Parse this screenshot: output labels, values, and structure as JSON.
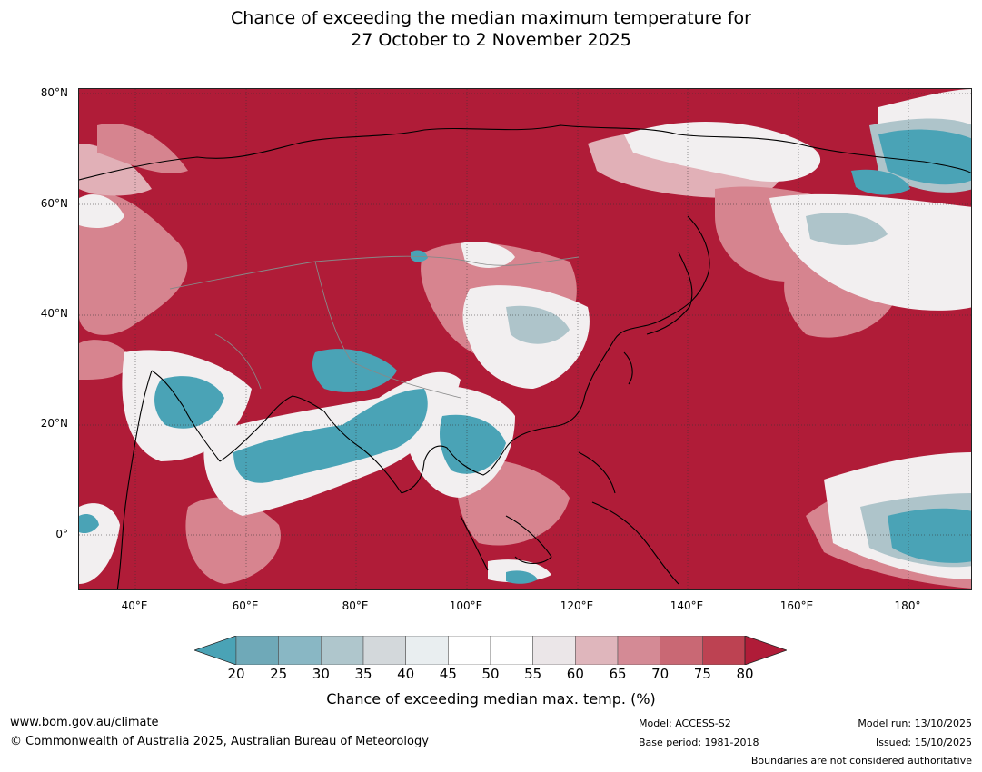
{
  "title": {
    "line1": "Chance of exceeding the median maximum temperature for",
    "line2": "27 October to 2 November 2025"
  },
  "map": {
    "lat_labels": [
      "80°N",
      "60°N",
      "40°N",
      "20°N",
      "0°"
    ],
    "lon_labels": [
      "40°E",
      "60°E",
      "80°E",
      "100°E",
      "120°E",
      "140°E",
      "160°E",
      "180°"
    ],
    "colors": {
      "very_high": "#b01c38",
      "high": "#c5495a",
      "mid_high": "#d98a94",
      "neutral": "#f2eff0",
      "low": "#aec4ca",
      "very_low": "#4aa3b6"
    }
  },
  "colorbar": {
    "ticks": [
      "20",
      "25",
      "30",
      "35",
      "40",
      "45",
      "50",
      "55",
      "60",
      "65",
      "70",
      "75",
      "80"
    ],
    "colors": [
      "#4aa3b6",
      "#6fa9b8",
      "#89b7c4",
      "#afc6cc",
      "#d3d8db",
      "#e9eef0",
      "#ffffff",
      "#ffffff",
      "#ebe6e8",
      "#dfb6bc",
      "#d48a95",
      "#c96874",
      "#bd4252",
      "#b01c38"
    ],
    "label": "Chance of exceeding median max. temp. (%)"
  },
  "footer": {
    "website": "www.bom.gov.au/climate",
    "copyright": "© Commonwealth of Australia 2025, Australian Bureau of Meteorology",
    "model": "Model: ACCESS-S2",
    "base_period": "Base period: 1981-2018",
    "model_run": "Model run: 13/10/2025",
    "issued": "Issued: 15/10/2025",
    "disclaimer": "Boundaries are not considered authoritative"
  }
}
